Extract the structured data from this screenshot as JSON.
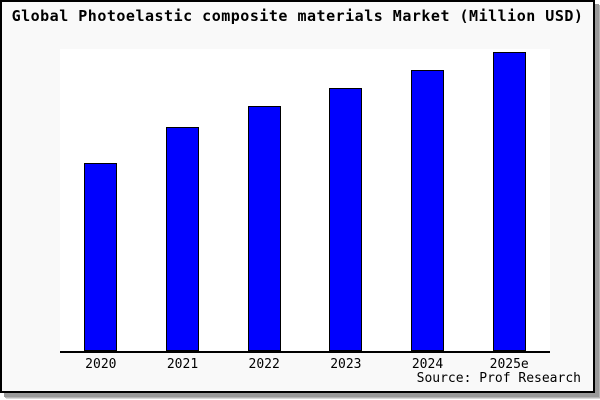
{
  "figure": {
    "background": "#f9f9f9",
    "border_color": "#000000",
    "shadow_color": "#999999"
  },
  "footer": {
    "source_label": "Source: Prof Research"
  },
  "chart_data": {
    "type": "bar",
    "title": "Global Photoelastic composite materials Market (Million USD)",
    "categories": [
      "2020",
      "2021",
      "2022",
      "2023",
      "2024",
      "2025e"
    ],
    "values": [
      63,
      75,
      82,
      88,
      94,
      100
    ],
    "value_note": "no y-axis ticks shown; values estimated from bar heights, normalized to 2025e = 100",
    "unit": "Million USD",
    "xlabel": "",
    "ylabel": "",
    "ylim": [
      0,
      101
    ],
    "grid": false,
    "legend": false,
    "bar_color": "#0000fe",
    "bar_edge_color": "#000000",
    "plot_background": "#ffffff",
    "axis_color": "#000000",
    "source": "Prof Research"
  }
}
